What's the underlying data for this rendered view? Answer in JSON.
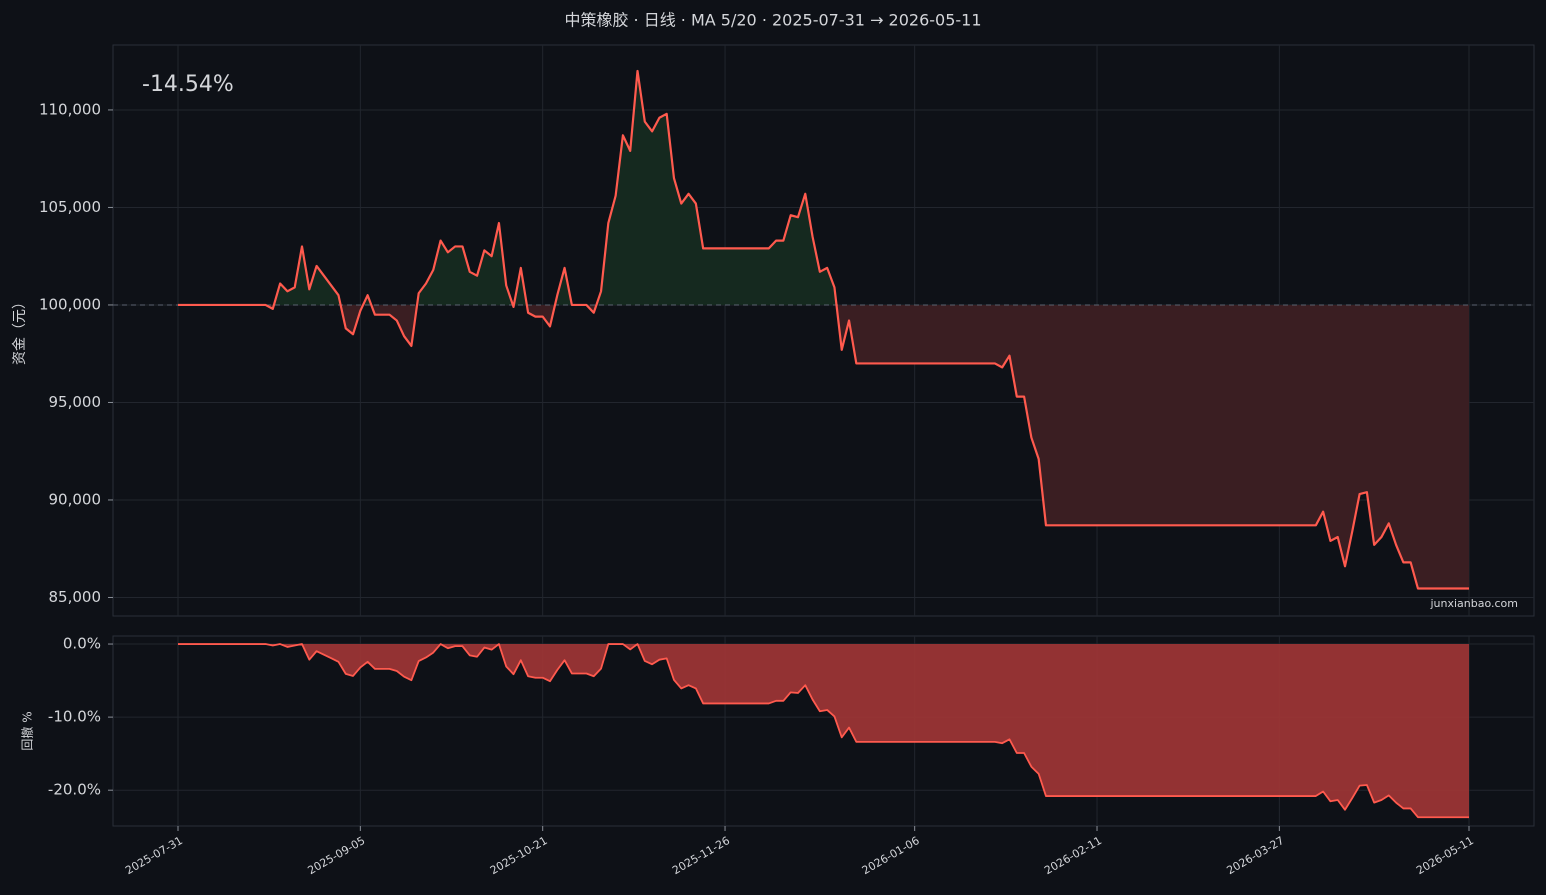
{
  "chart_data": {
    "type": "line",
    "title": "中策橡胶 · 日线 · MA 5/20 · 2025-07-31 → 2026-05-11",
    "annotation": "-14.54%",
    "watermark": "junxianbao.com",
    "ylabel": "资金（元）",
    "grid": true,
    "baseline": 100000,
    "ylim": [
      84050,
      113330
    ],
    "yticks": [
      {
        "value": 85000,
        "label": "85,000"
      },
      {
        "value": 90000,
        "label": "90,000"
      },
      {
        "value": 95000,
        "label": "95,000"
      },
      {
        "value": 100000,
        "label": "100,000"
      },
      {
        "value": 105000,
        "label": "105,000"
      },
      {
        "value": 110000,
        "label": "110,000"
      }
    ],
    "categories": [
      "2025-07-31",
      null,
      null,
      null,
      null,
      null,
      null,
      null,
      null,
      null,
      null,
      null,
      null,
      null,
      null,
      null,
      null,
      null,
      null,
      null,
      null,
      null,
      null,
      null,
      null,
      "2025-09-05",
      null,
      null,
      null,
      null,
      null,
      null,
      null,
      null,
      null,
      null,
      null,
      null,
      null,
      null,
      null,
      null,
      null,
      null,
      null,
      null,
      null,
      null,
      null,
      null,
      "2025-10-21",
      null,
      null,
      null,
      null,
      null,
      null,
      null,
      null,
      null,
      null,
      null,
      null,
      null,
      null,
      null,
      null,
      null,
      null,
      null,
      null,
      null,
      null,
      null,
      null,
      "2025-11-26",
      null,
      null,
      null,
      null,
      null,
      null,
      null,
      null,
      null,
      null,
      null,
      null,
      null,
      null,
      null,
      null,
      null,
      null,
      null,
      null,
      null,
      null,
      null,
      null,
      null,
      "2026-01-06",
      null,
      null,
      null,
      null,
      null,
      null,
      null,
      null,
      null,
      null,
      null,
      null,
      null,
      null,
      null,
      null,
      null,
      null,
      null,
      null,
      null,
      null,
      null,
      null,
      "2026-02-11",
      null,
      null,
      null,
      null,
      null,
      null,
      null,
      null,
      null,
      null,
      null,
      null,
      null,
      null,
      null,
      null,
      null,
      null,
      null,
      null,
      null,
      null,
      null,
      null,
      "2026-03-27",
      null,
      null,
      null,
      null,
      null,
      null,
      null,
      null,
      null,
      null,
      null,
      null,
      null,
      null,
      null,
      null,
      null,
      null,
      null,
      null,
      null,
      null,
      null,
      null,
      null,
      "2026-05-11"
    ],
    "series": [
      {
        "color": "#ff5a4e",
        "values": [
          100000,
          100000,
          100000,
          100000,
          100000,
          100000,
          100000,
          100000,
          100000,
          100000,
          100000,
          100000,
          100000,
          99800,
          101100,
          100700,
          100900,
          103000,
          100800,
          102000,
          101500,
          101000,
          100500,
          98800,
          98500,
          99700,
          100500,
          99500,
          99500,
          99500,
          99200,
          98400,
          97900,
          100600,
          101100,
          101800,
          103300,
          102700,
          103000,
          103000,
          101700,
          101500,
          102800,
          102500,
          104200,
          101000,
          99900,
          101900,
          99600,
          99400,
          99400,
          98900,
          100500,
          101900,
          100000,
          100000,
          100000,
          99600,
          100700,
          104200,
          105600,
          108700,
          107900,
          112000,
          109400,
          108900,
          109600,
          109800,
          106500,
          105200,
          105700,
          105200,
          102900,
          102900,
          102900,
          102900,
          102900,
          102900,
          102900,
          102900,
          102900,
          102900,
          103300,
          103300,
          104600,
          104500,
          105700,
          103500,
          101700,
          101900,
          100900,
          97700,
          99200,
          97000,
          97000,
          97000,
          97000,
          97000,
          97000,
          97000,
          97000,
          97000,
          97000,
          97000,
          97000,
          97000,
          97000,
          97000,
          97000,
          97000,
          97000,
          97000,
          97000,
          96800,
          97400,
          95300,
          95300,
          93200,
          92100,
          88700,
          88700,
          88700,
          88700,
          88700,
          88700,
          88700,
          88700,
          88700,
          88700,
          88700,
          88700,
          88700,
          88700,
          88700,
          88700,
          88700,
          88700,
          88700,
          88700,
          88700,
          88700,
          88700,
          88700,
          88700,
          88700,
          88700,
          88700,
          88700,
          88700,
          88700,
          88700,
          88700,
          88700,
          88700,
          88700,
          88700,
          88700,
          89400,
          87900,
          88100,
          86600,
          88400,
          90300,
          90400,
          87700,
          88100,
          88800,
          87700,
          86800,
          86800,
          85460,
          85460,
          85460,
          85460,
          85460,
          85460,
          85460,
          85460
        ]
      }
    ],
    "drawdown": {
      "ylabel": "回撤 %",
      "color": "#ff5a4e",
      "fill": "#9b3535",
      "ylim": [
        -24.9,
        1.1
      ],
      "yticks": [
        {
          "value": 0,
          "label": "0.0%"
        },
        {
          "value": -10,
          "label": "-10.0%"
        },
        {
          "value": -20,
          "label": "-20.0%"
        }
      ],
      "values": [
        0,
        0,
        0,
        0,
        0,
        0,
        0,
        0,
        0,
        0,
        0,
        0,
        0,
        -0.2,
        0,
        -0.4,
        -0.2,
        0,
        -2.14,
        -0.97,
        -1.46,
        -1.94,
        -2.43,
        -4.08,
        -4.37,
        -3.2,
        -2.43,
        -3.4,
        -3.4,
        -3.4,
        -3.69,
        -4.47,
        -4.95,
        -2.33,
        -1.84,
        -1.17,
        0,
        -0.58,
        -0.29,
        -0.29,
        -1.55,
        -1.74,
        -0.48,
        -0.77,
        0,
        -3.07,
        -4.13,
        -2.21,
        -4.41,
        -4.61,
        -4.61,
        -5.09,
        -3.55,
        -2.21,
        -4.03,
        -4.03,
        -4.03,
        -4.41,
        -3.36,
        0,
        0,
        0,
        -0.74,
        0,
        -2.32,
        -2.77,
        -2.14,
        -1.96,
        -4.91,
        -6.07,
        -5.63,
        -6.07,
        -8.13,
        -8.13,
        -8.13,
        -8.13,
        -8.13,
        -8.13,
        -8.13,
        -8.13,
        -8.13,
        -8.13,
        -7.77,
        -7.77,
        -6.61,
        -6.7,
        -5.63,
        -7.59,
        -9.2,
        -9.02,
        -9.91,
        -12.77,
        -11.43,
        -13.39,
        -13.39,
        -13.39,
        -13.39,
        -13.39,
        -13.39,
        -13.39,
        -13.39,
        -13.39,
        -13.39,
        -13.39,
        -13.39,
        -13.39,
        -13.39,
        -13.39,
        -13.39,
        -13.39,
        -13.39,
        -13.39,
        -13.39,
        -13.57,
        -13.04,
        -14.91,
        -14.91,
        -16.79,
        -17.77,
        -20.8,
        -20.8,
        -20.8,
        -20.8,
        -20.8,
        -20.8,
        -20.8,
        -20.8,
        -20.8,
        -20.8,
        -20.8,
        -20.8,
        -20.8,
        -20.8,
        -20.8,
        -20.8,
        -20.8,
        -20.8,
        -20.8,
        -20.8,
        -20.8,
        -20.8,
        -20.8,
        -20.8,
        -20.8,
        -20.8,
        -20.8,
        -20.8,
        -20.8,
        -20.8,
        -20.8,
        -20.8,
        -20.8,
        -20.8,
        -20.8,
        -20.8,
        -20.8,
        -20.8,
        -20.18,
        -21.52,
        -21.34,
        -22.68,
        -21.07,
        -19.38,
        -19.29,
        -21.7,
        -21.34,
        -20.71,
        -21.7,
        -22.5,
        -22.5,
        -23.7,
        -23.7,
        -23.7,
        -23.7,
        -23.7,
        -23.7,
        -23.7,
        -23.7
      ]
    }
  }
}
